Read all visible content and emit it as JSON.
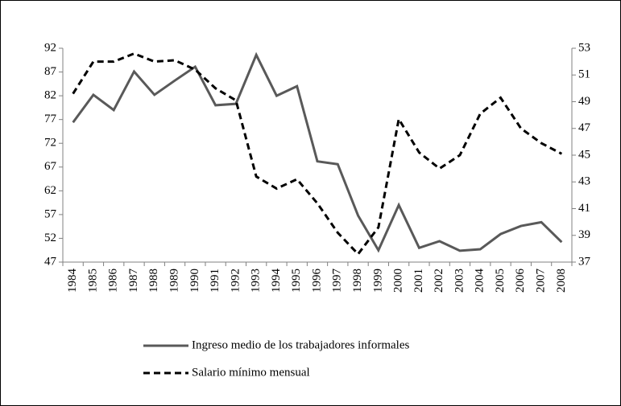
{
  "chart_data": {
    "type": "line",
    "categories": [
      "1984",
      "1985",
      "1986",
      "1987",
      "1988",
      "1989",
      "1990",
      "1991",
      "1992",
      "1993",
      "1994",
      "1995",
      "1996",
      "1997",
      "1998",
      "1999",
      "2000",
      "2001",
      "2002",
      "2003",
      "2004",
      "2005",
      "2006",
      "2007",
      "2008"
    ],
    "series": [
      {
        "name": "Ingreso medio de los trabajadores informales",
        "color": "#595959",
        "dash": false,
        "values": [
          76.4,
          82.2,
          79,
          87.1,
          82.2,
          85.2,
          88.1,
          80,
          80.3,
          90.6,
          82,
          84,
          68.2,
          67.6,
          56.8,
          49.5,
          59,
          50,
          51.4,
          49.4,
          49.7,
          52.9,
          54.6,
          55.4,
          51.2
        ]
      },
      {
        "name": "Salario mínimo mensual",
        "color": "#000000",
        "dash": true,
        "axis": "y2",
        "values": [
          49.6,
          52,
          52,
          52.6,
          52,
          52.1,
          51.4,
          50,
          49.1,
          43.4,
          42.5,
          43.2,
          41.4,
          39.2,
          37.6,
          39.6,
          47.7,
          45.2,
          44,
          45,
          48.1,
          49.3,
          47,
          45.9,
          45.1
        ]
      }
    ],
    "ylim": [
      47,
      92
    ],
    "yticks": [
      47,
      52,
      57,
      62,
      67,
      72,
      77,
      82,
      87,
      92
    ],
    "y2lim": [
      37,
      53
    ],
    "y2ticks": [
      37,
      39,
      41,
      43,
      45,
      47,
      49,
      51,
      53
    ]
  }
}
